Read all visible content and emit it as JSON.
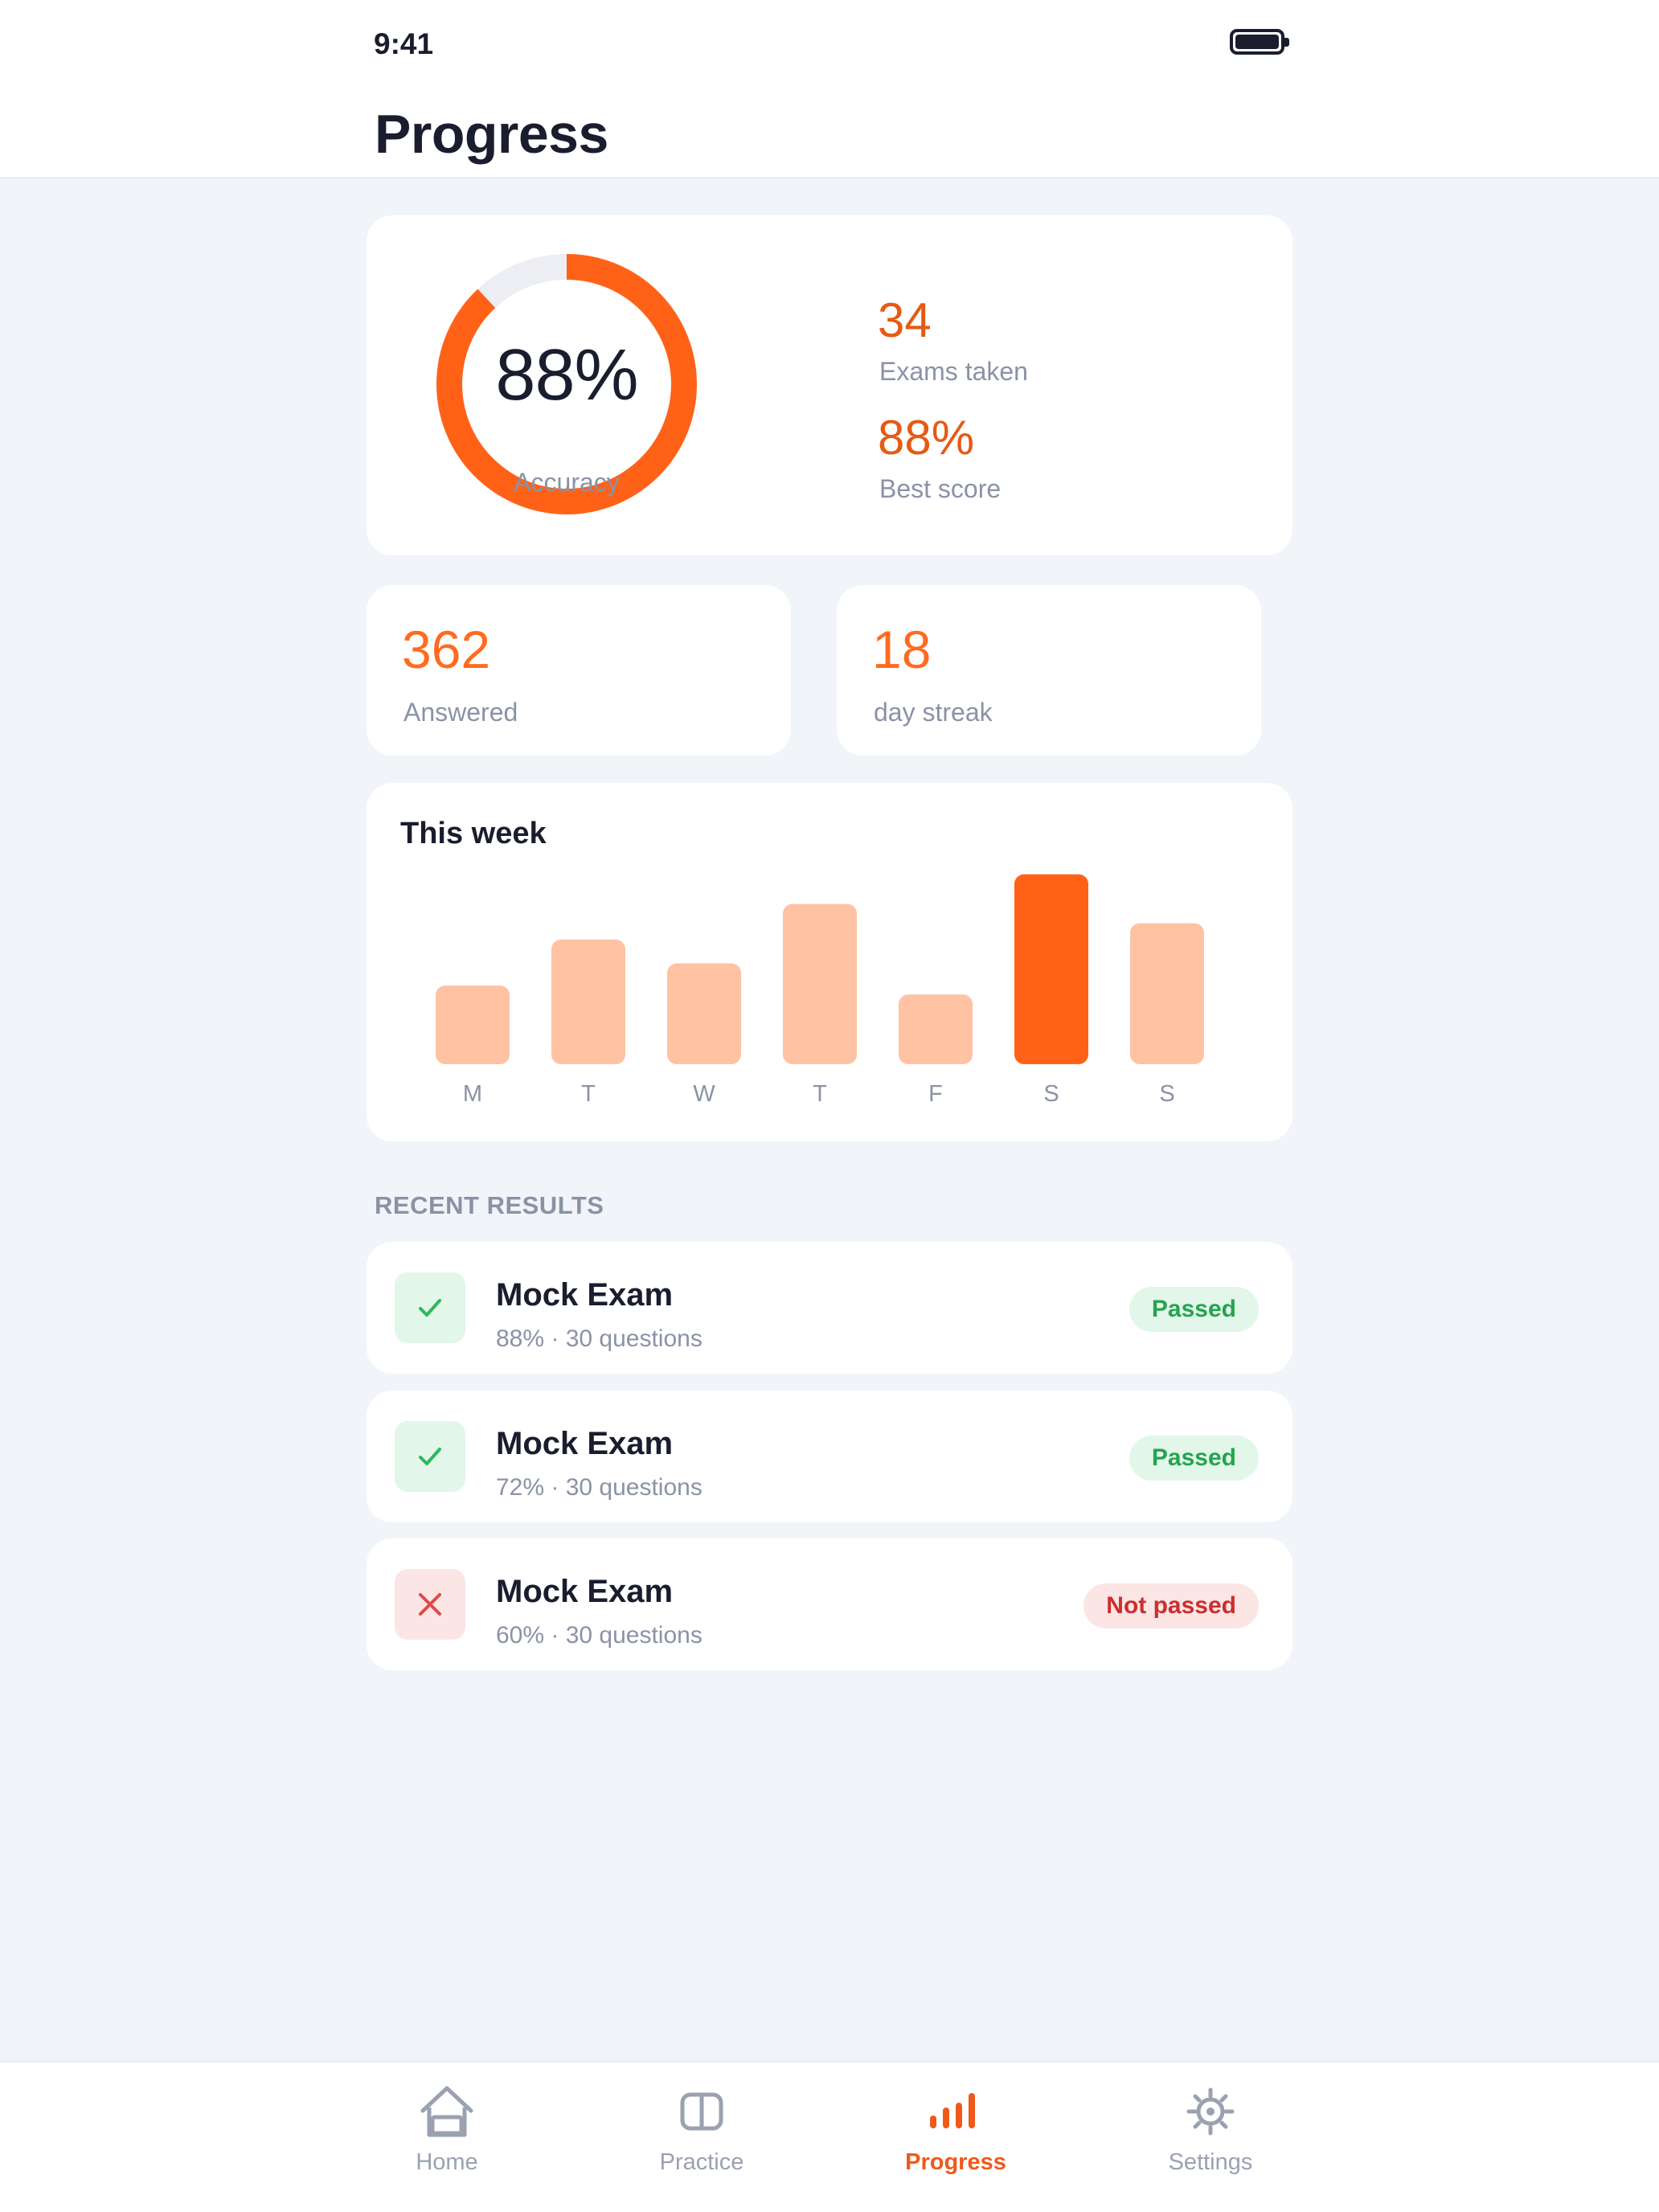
{
  "status_bar": {
    "time": "9:41"
  },
  "header": {
    "title": "Progress"
  },
  "accuracy": {
    "value_text": "88%",
    "label": "Accuracy",
    "fraction": 0.88,
    "stats": [
      {
        "value": "34",
        "label": "Exams taken"
      },
      {
        "value": "88%",
        "label": "Best score"
      }
    ]
  },
  "quick_stats": [
    {
      "value": "362",
      "label": "Answered"
    },
    {
      "value": "18",
      "label": "day streak"
    }
  ],
  "chart_data": {
    "type": "bar",
    "title": "This week",
    "categories": [
      "M",
      "T",
      "W",
      "T",
      "F",
      "S",
      "S"
    ],
    "values": [
      53,
      84,
      68,
      108,
      47,
      128,
      95
    ],
    "highlight_index": 5,
    "colors": {
      "bar": "#ffc2a3",
      "highlight": "#ff6217"
    },
    "ylim": [
      0,
      130
    ],
    "grid": false,
    "xlabel": "",
    "ylabel": ""
  },
  "recent": {
    "label": "RECENT RESULTS",
    "items": [
      {
        "title": "Mock Exam",
        "subtitle": "88% · 30 questions",
        "status": "Passed",
        "passed": true
      },
      {
        "title": "Mock Exam",
        "subtitle": "72% · 30 questions",
        "status": "Passed",
        "passed": true
      },
      {
        "title": "Mock Exam",
        "subtitle": "60% · 30 questions",
        "status": "Not passed",
        "passed": false
      }
    ]
  },
  "tabbar": {
    "active": "Progress",
    "items": [
      {
        "label": "Home",
        "icon": "home-icon"
      },
      {
        "label": "Practice",
        "icon": "book-icon"
      },
      {
        "label": "Progress",
        "icon": "bar-chart-icon"
      },
      {
        "label": "Settings",
        "icon": "gear-icon"
      }
    ]
  },
  "colors": {
    "accent": "#ff6217",
    "background": "#f1f4f9",
    "pass": "#26a34f",
    "fail": "#cc2e2e"
  }
}
